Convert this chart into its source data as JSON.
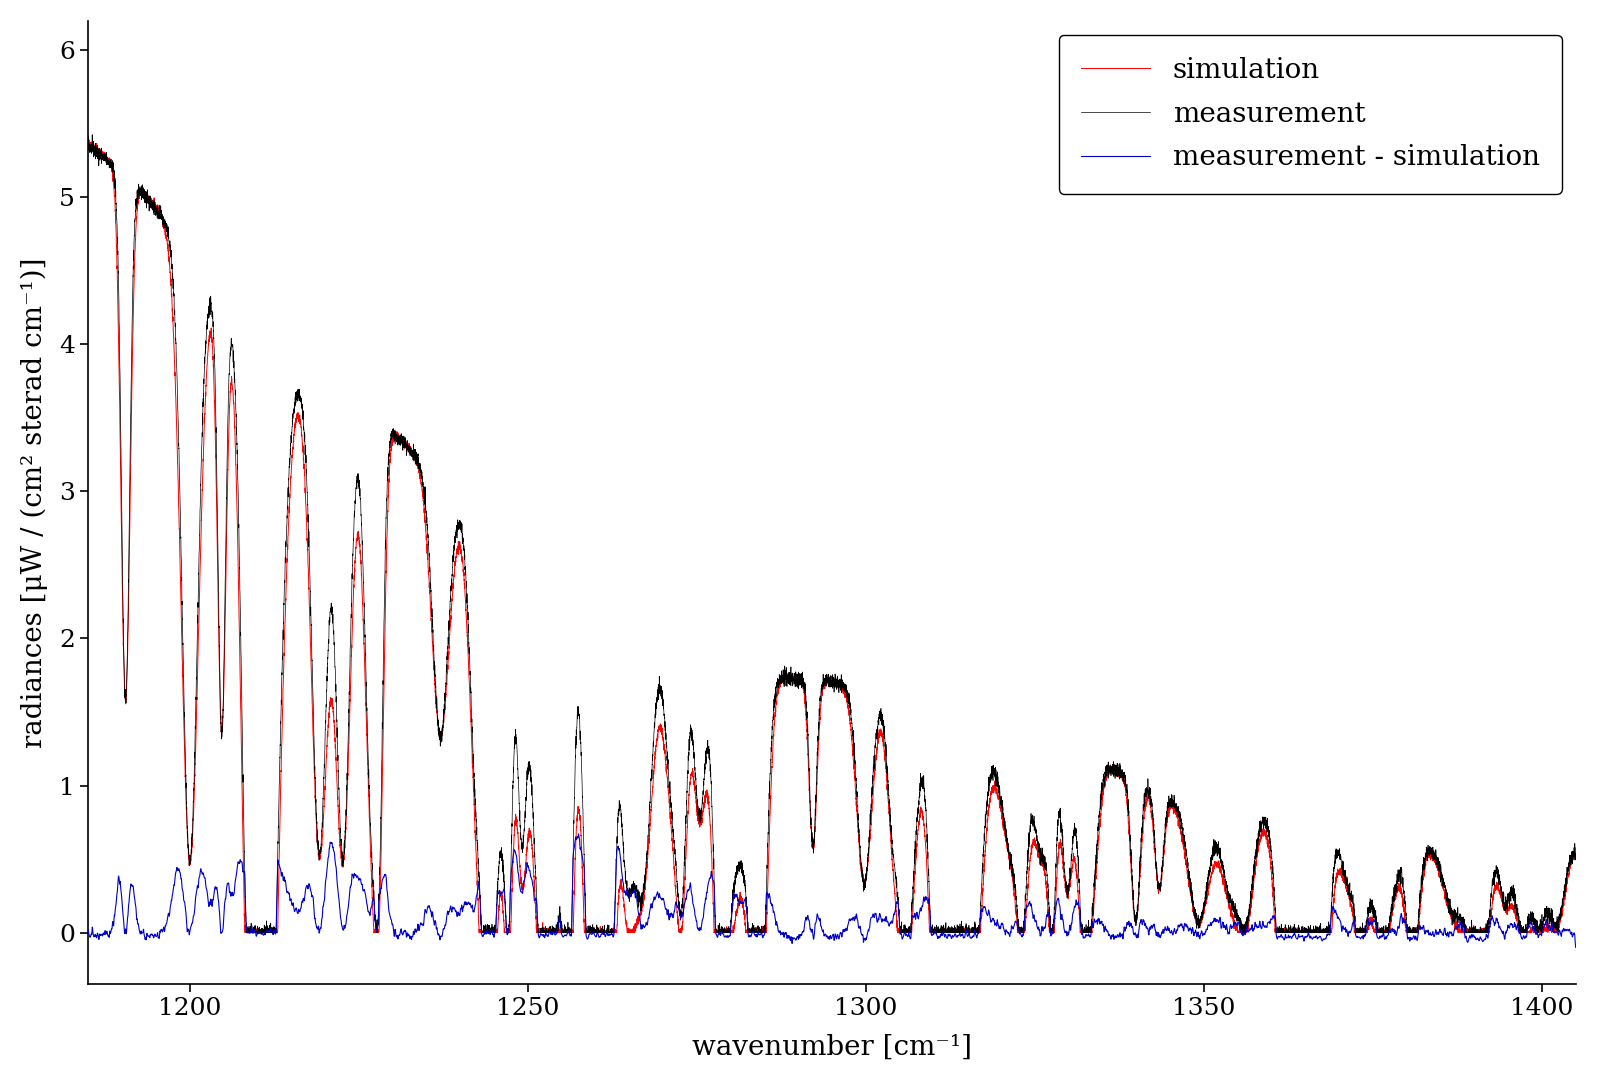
{
  "title": "",
  "xlabel": "wavenumber [cm⁻¹]",
  "ylabel": "radiances [μW / (cm² sterad cm⁻¹)]",
  "xlim": [
    1185,
    1405
  ],
  "ylim": [
    -0.35,
    6.2
  ],
  "xticks": [
    1200,
    1250,
    1300,
    1350,
    1400
  ],
  "yticks": [
    0,
    1,
    2,
    3,
    4,
    5,
    6
  ],
  "legend_labels": [
    "measurement",
    "simulation",
    "measurement - simulation"
  ],
  "measurement_color": "#000000",
  "simulation_color": "#ff0000",
  "residual_color": "#0000cc",
  "background_color": "#ffffff",
  "figsize": [
    16.0,
    10.82
  ],
  "dpi": 100,
  "font_family": "serif",
  "legend_fontsize": 20,
  "axis_label_fontsize": 20,
  "tick_fontsize": 18
}
